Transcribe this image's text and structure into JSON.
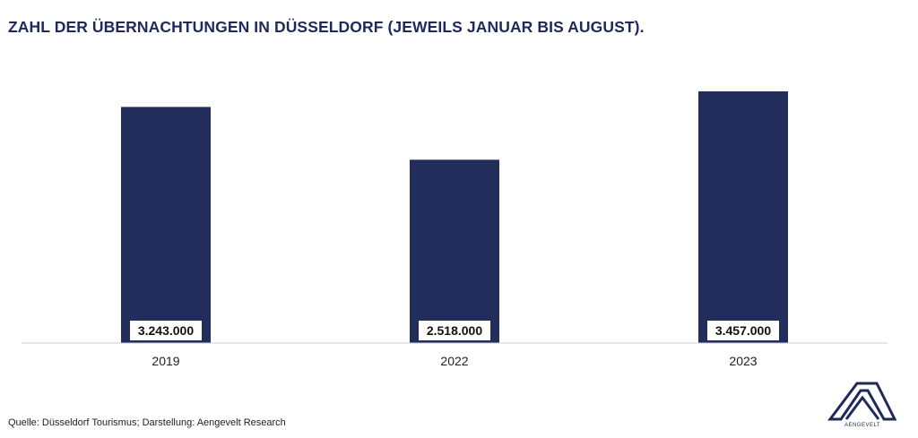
{
  "title": "ZAHL DER ÜBERNACHTUNGEN IN DÜSSELDORF (JEWEILS JANUAR BIS AUGUST).",
  "source": "Quelle: Düsseldorf Tourismus; Darstellung: Aengevelt Research",
  "logo_text": "AENGEVELT",
  "colors": {
    "bar": "#232d5c",
    "axis": "#c8ccd8",
    "label_box": "#ffffff"
  },
  "chart_data": {
    "type": "bar",
    "categories": [
      "2019",
      "2022",
      "2023"
    ],
    "values": [
      3243000,
      2518000,
      3457000
    ],
    "value_labels": [
      "3.243.000",
      "2.518.000",
      "3.457.000"
    ],
    "title": "ZAHL DER ÜBERNACHTUNGEN IN DÜSSELDORF (JEWEILS JANUAR BIS AUGUST).",
    "xlabel": "",
    "ylabel": "",
    "grid": false,
    "legend": "none"
  }
}
